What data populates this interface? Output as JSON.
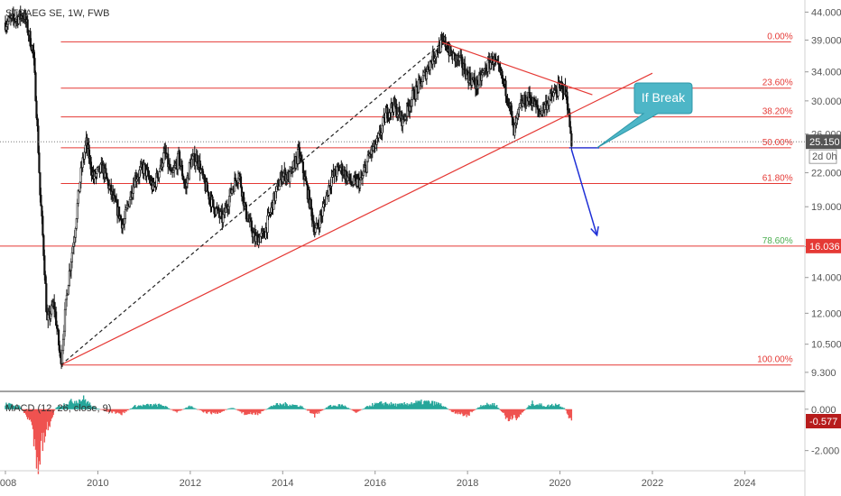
{
  "header": {
    "symbol": "STRAEG SE, 1W, FWB"
  },
  "callout": {
    "text": "If Break"
  },
  "colors": {
    "candle": "#111111",
    "fib_line": "#e53935",
    "trendline": "#e53935",
    "fib_786_label": "#4caf50",
    "arrow": "#1e2fd6",
    "callout_fill": "#4db6c7",
    "macd_up": "#26a69a",
    "macd_down": "#ef5350",
    "price_tag": "#e53935",
    "last_tag": "#555555"
  },
  "chart_data": [
    {
      "type": "candlestick",
      "title": "STRAEG SE, 1W, FWB",
      "xlim": [
        2008.0,
        2025.3
      ],
      "ylim": [
        8.7,
        46.0
      ],
      "y_scale": "log",
      "x_ticks": [
        "2008",
        "2010",
        "2012",
        "2014",
        "2016",
        "2018",
        "2020",
        "2022",
        "2024"
      ],
      "x_tick_values": [
        2008,
        2010,
        2012,
        2014,
        2016,
        2018,
        2020,
        2022,
        2024
      ],
      "y_ticks": [
        {
          "value": 44.0,
          "label": "44.000"
        },
        {
          "value": 39.0,
          "label": "39.000"
        },
        {
          "value": 34.0,
          "label": "34.000"
        },
        {
          "value": 30.0,
          "label": "30.000"
        },
        {
          "value": 26.0,
          "label": "26.000"
        },
        {
          "value": 22.0,
          "label": "22.000"
        },
        {
          "value": 19.0,
          "label": "19.000"
        },
        {
          "value": 16.0,
          "label": "16.000"
        },
        {
          "value": 14.0,
          "label": "14.000"
        },
        {
          "value": 12.0,
          "label": "12.000"
        },
        {
          "value": 10.5,
          "label": "10.500"
        },
        {
          "value": 9.3,
          "label": "9.300"
        }
      ],
      "price_path": [
        [
          2008.0,
          42.0
        ],
        [
          2008.4,
          43.5
        ],
        [
          2008.6,
          37.0
        ],
        [
          2008.75,
          20.0
        ],
        [
          2008.9,
          11.5
        ],
        [
          2009.05,
          12.5
        ],
        [
          2009.2,
          9.6
        ],
        [
          2009.35,
          13.5
        ],
        [
          2009.5,
          17.0
        ],
        [
          2009.65,
          22.5
        ],
        [
          2009.75,
          25.0
        ],
        [
          2009.9,
          21.5
        ],
        [
          2010.1,
          22.5
        ],
        [
          2010.3,
          20.0
        ],
        [
          2010.55,
          17.5
        ],
        [
          2010.8,
          21.5
        ],
        [
          2011.0,
          22.5
        ],
        [
          2011.2,
          20.5
        ],
        [
          2011.45,
          24.0
        ],
        [
          2011.6,
          21.5
        ],
        [
          2011.75,
          23.5
        ],
        [
          2011.9,
          20.5
        ],
        [
          2012.0,
          23.0
        ],
        [
          2012.15,
          23.5
        ],
        [
          2012.3,
          21.0
        ],
        [
          2012.5,
          19.0
        ],
        [
          2012.7,
          18.0
        ],
        [
          2012.9,
          20.5
        ],
        [
          2013.05,
          22.0
        ],
        [
          2013.2,
          18.5
        ],
        [
          2013.4,
          16.5
        ],
        [
          2013.6,
          16.8
        ],
        [
          2013.8,
          19.5
        ],
        [
          2014.0,
          22.0
        ],
        [
          2014.15,
          21.5
        ],
        [
          2014.35,
          24.0
        ],
        [
          2014.5,
          21.0
        ],
        [
          2014.7,
          17.0
        ],
        [
          2014.85,
          18.5
        ],
        [
          2015.05,
          21.5
        ],
        [
          2015.25,
          22.5
        ],
        [
          2015.5,
          21.0
        ],
        [
          2015.7,
          21.2
        ],
        [
          2015.9,
          24.0
        ],
        [
          2016.05,
          25.0
        ],
        [
          2016.25,
          28.5
        ],
        [
          2016.4,
          29.5
        ],
        [
          2016.6,
          27.5
        ],
        [
          2016.8,
          30.5
        ],
        [
          2017.0,
          32.5
        ],
        [
          2017.2,
          35.5
        ],
        [
          2017.35,
          37.5
        ],
        [
          2017.5,
          38.7
        ],
        [
          2017.65,
          36.5
        ],
        [
          2017.85,
          35.5
        ],
        [
          2018.0,
          33.5
        ],
        [
          2018.2,
          32.0
        ],
        [
          2018.4,
          34.5
        ],
        [
          2018.55,
          36.0
        ],
        [
          2018.75,
          33.0
        ],
        [
          2018.9,
          30.0
        ],
        [
          2019.0,
          26.0
        ],
        [
          2019.15,
          29.5
        ],
        [
          2019.35,
          30.5
        ],
        [
          2019.55,
          28.5
        ],
        [
          2019.75,
          30.0
        ],
        [
          2019.95,
          31.5
        ],
        [
          2020.05,
          32.0
        ],
        [
          2020.15,
          30.5
        ],
        [
          2020.2,
          27.5
        ],
        [
          2020.25,
          25.15
        ]
      ],
      "fib_levels": [
        {
          "label": "0.00%",
          "value": 38.7
        },
        {
          "label": "23.60%",
          "value": 31.7
        },
        {
          "label": "38.20%",
          "value": 28.0
        },
        {
          "label": "50.00%",
          "value": 24.5
        },
        {
          "label": "61.80%",
          "value": 21.0
        },
        {
          "label": "78.60%",
          "value": 16.036
        },
        {
          "label": "100.00%",
          "value": 9.6
        }
      ],
      "fib_x_range": [
        2009.2,
        2025.0
      ],
      "trendlines": [
        {
          "style": "solid",
          "from": [
            2009.2,
            9.6
          ],
          "to": [
            2022.0,
            33.8
          ]
        },
        {
          "style": "solid",
          "from": [
            2017.45,
            38.6
          ],
          "to": [
            2020.7,
            30.8
          ]
        },
        {
          "style": "dashed",
          "from": [
            2009.2,
            9.6
          ],
          "to": [
            2017.45,
            38.6
          ]
        }
      ],
      "support_segment": {
        "from": [
          2020.2,
          24.5
        ],
        "to": [
          2020.85,
          24.5
        ]
      },
      "projection_arrow": {
        "from": [
          2020.25,
          24.3
        ],
        "to": [
          2020.8,
          16.8
        ]
      },
      "callout_anchor": [
        2020.8,
        24.5
      ],
      "price_tags": [
        {
          "value": 25.15,
          "label": "25.150",
          "style": "last"
        },
        {
          "value": 16.036,
          "label": "16.036",
          "style": "fib"
        }
      ],
      "countdown": "2d 0h"
    },
    {
      "type": "bar",
      "title": "MACD (12, 26, close, 9)",
      "ylim": [
        -2.8,
        0.6
      ],
      "y_ticks": [
        {
          "value": 0.0,
          "label": "0.000"
        },
        {
          "value": -2.0,
          "label": "-2.000"
        }
      ],
      "last_value": -0.577,
      "last_label": "-0.577",
      "histogram_path": [
        [
          2008.0,
          0.25
        ],
        [
          2008.3,
          0.15
        ],
        [
          2008.55,
          -0.6
        ],
        [
          2008.7,
          -2.4
        ],
        [
          2008.85,
          -1.2
        ],
        [
          2009.1,
          0.1
        ],
        [
          2009.4,
          0.35
        ],
        [
          2009.7,
          0.5
        ],
        [
          2009.9,
          0.1
        ],
        [
          2010.2,
          -0.1
        ],
        [
          2010.5,
          -0.25
        ],
        [
          2010.8,
          0.15
        ],
        [
          2011.1,
          0.2
        ],
        [
          2011.4,
          0.2
        ],
        [
          2011.7,
          -0.15
        ],
        [
          2012.0,
          0.15
        ],
        [
          2012.3,
          -0.15
        ],
        [
          2012.6,
          -0.2
        ],
        [
          2012.9,
          0.1
        ],
        [
          2013.2,
          -0.25
        ],
        [
          2013.5,
          -0.2
        ],
        [
          2013.8,
          0.2
        ],
        [
          2014.1,
          0.25
        ],
        [
          2014.4,
          0.15
        ],
        [
          2014.7,
          -0.3
        ],
        [
          2015.0,
          0.15
        ],
        [
          2015.3,
          0.2
        ],
        [
          2015.6,
          -0.15
        ],
        [
          2015.9,
          0.2
        ],
        [
          2016.2,
          0.3
        ],
        [
          2016.5,
          0.2
        ],
        [
          2016.8,
          0.3
        ],
        [
          2017.1,
          0.35
        ],
        [
          2017.4,
          0.25
        ],
        [
          2017.7,
          -0.15
        ],
        [
          2018.0,
          -0.3
        ],
        [
          2018.3,
          0.2
        ],
        [
          2018.6,
          0.25
        ],
        [
          2018.9,
          -0.55
        ],
        [
          2019.1,
          -0.35
        ],
        [
          2019.4,
          0.3
        ],
        [
          2019.7,
          0.15
        ],
        [
          2019.95,
          0.25
        ],
        [
          2020.1,
          0.05
        ],
        [
          2020.25,
          -0.577
        ]
      ]
    }
  ]
}
